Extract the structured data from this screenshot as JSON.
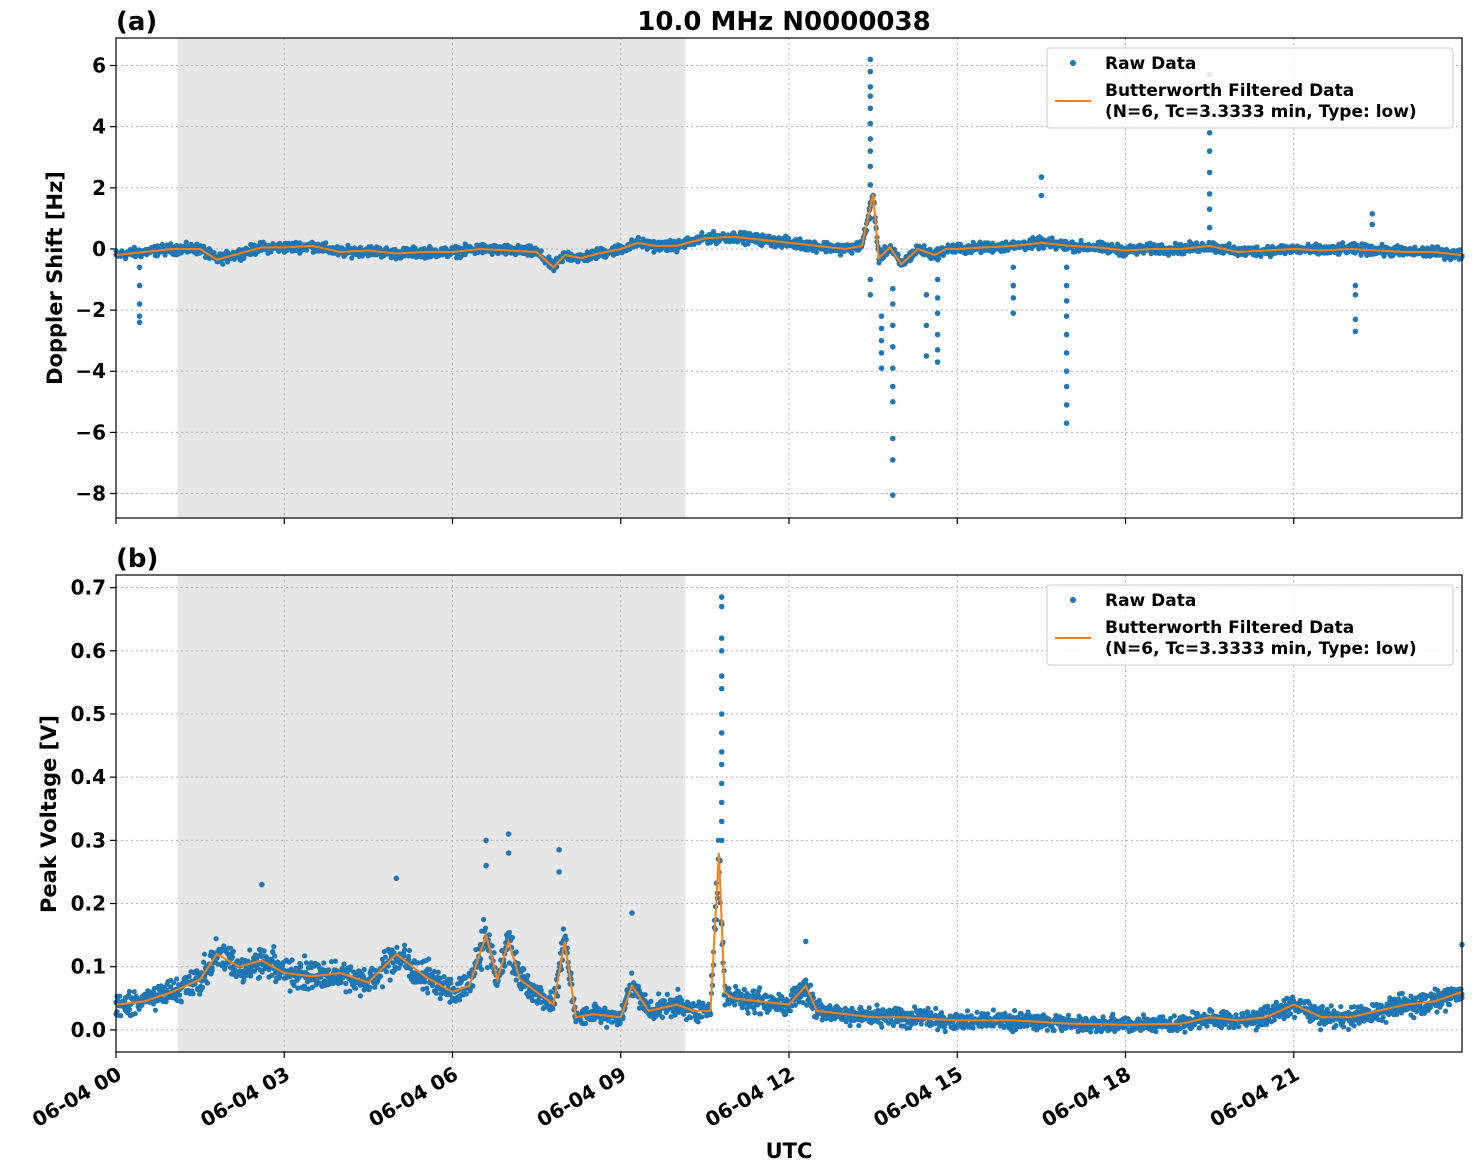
{
  "figure": {
    "title": "10.0 MHz N0000038",
    "xlabel": "UTC",
    "x_tick_labels": [
      "06-04 00",
      "06-04 03",
      "06-04 06",
      "06-04 09",
      "06-04 12",
      "06-04 15",
      "06-04 18",
      "06-04 21"
    ],
    "shaded_interval_hours": [
      1.1,
      10.15
    ],
    "colors": {
      "raw": "#1f77b4",
      "filtered": "#ff7f0e",
      "shade": "#e6e6e6",
      "grid": "#b0b0b0"
    }
  },
  "chart_data": [
    {
      "type": "scatter",
      "panel_label": "(a)",
      "ylabel": "Doppler Shift [Hz]",
      "xlim_hours": [
        0,
        24
      ],
      "ylim": [
        -8.8,
        6.9
      ],
      "y_ticks": [
        6,
        4,
        2,
        0,
        -2,
        -4,
        -6,
        -8
      ],
      "y_tick_labels": [
        "6",
        "4",
        "2",
        "0",
        "−2",
        "−4",
        "−6",
        "−8"
      ],
      "legend_position": "top-right",
      "legend": {
        "raw": "Raw Data",
        "filtered_line1": "Butterworth Filtered Data",
        "filtered_line2": "(N=6, Tc=3.3333 min, Type: low)"
      },
      "series": [
        {
          "name": "Butterworth Filtered Data",
          "x": [
            0,
            0.5,
            1,
            1.5,
            1.8,
            2.2,
            2.6,
            3,
            3.5,
            4,
            4.5,
            5,
            5.5,
            6,
            6.5,
            7,
            7.5,
            7.8,
            8,
            8.3,
            8.6,
            9,
            9.3,
            9.6,
            10,
            10.5,
            11,
            11.5,
            12,
            12.5,
            13,
            13.3,
            13.5,
            13.6,
            13.8,
            14,
            14.3,
            14.6,
            14.8,
            15,
            15.5,
            16,
            16.5,
            17,
            17.5,
            18,
            18.5,
            19,
            19.5,
            20,
            20.5,
            21,
            21.5,
            22,
            22.5,
            23,
            23.5,
            24
          ],
          "y": [
            -0.2,
            -0.1,
            0.0,
            0.0,
            -0.35,
            -0.15,
            0.05,
            0.05,
            0.1,
            -0.1,
            -0.05,
            -0.15,
            -0.1,
            -0.1,
            0.0,
            -0.05,
            -0.1,
            -0.6,
            -0.2,
            -0.3,
            -0.15,
            0.0,
            0.2,
            0.1,
            0.1,
            0.35,
            0.4,
            0.3,
            0.2,
            0.1,
            0.0,
            0.1,
            1.8,
            -0.3,
            0.05,
            -0.5,
            0.0,
            -0.2,
            0.0,
            0.0,
            0.05,
            0.1,
            0.2,
            0.1,
            0.05,
            -0.05,
            0.0,
            0.0,
            0.1,
            -0.1,
            -0.05,
            0.0,
            -0.05,
            0.0,
            -0.05,
            -0.1,
            -0.1,
            -0.2
          ]
        },
        {
          "name": "Raw Data",
          "band_spread": 0.25,
          "outliers": [
            {
              "x": 0.42,
              "y": [
                -0.6,
                -1.2,
                -1.8,
                -2.2,
                -2.4
              ]
            },
            {
              "x": 13.45,
              "y": [
                6.2,
                5.8,
                5.3,
                5.0,
                4.6,
                4.1,
                3.6,
                3.2,
                2.7,
                2.1,
                1.5,
                1.0,
                -1.0,
                -1.5
              ]
            },
            {
              "x": 13.65,
              "y": [
                -2.2,
                -2.6,
                -3.0,
                -3.4,
                -3.9
              ]
            },
            {
              "x": 13.85,
              "y": [
                -1.3,
                -1.8,
                -2.5,
                -3.2,
                -3.9,
                -4.5,
                -5.0,
                -6.2,
                -6.9,
                -8.05
              ]
            },
            {
              "x": 14.45,
              "y": [
                -1.5,
                -2.5,
                -3.5
              ]
            },
            {
              "x": 14.65,
              "y": [
                -1.0,
                -1.6,
                -2.1,
                -2.8,
                -3.3,
                -3.7
              ]
            },
            {
              "x": 16.0,
              "y": [
                -0.6,
                -1.2,
                -1.6,
                -2.1
              ]
            },
            {
              "x": 16.5,
              "y": [
                2.35,
                1.75
              ]
            },
            {
              "x": 16.95,
              "y": [
                -0.6,
                -1.2,
                -1.7,
                -2.2,
                -2.8,
                -3.4,
                -4.0,
                -4.5,
                -5.1,
                -5.7
              ]
            },
            {
              "x": 19.5,
              "y": [
                5.7,
                5.0,
                4.4,
                3.8,
                3.2,
                2.5,
                1.8,
                1.3,
                0.7
              ]
            },
            {
              "x": 22.1,
              "y": [
                -1.2,
                -1.5,
                -2.3,
                -2.7
              ]
            },
            {
              "x": 22.4,
              "y": [
                1.15,
                0.8
              ]
            }
          ]
        }
      ]
    },
    {
      "type": "scatter",
      "panel_label": "(b)",
      "ylabel": "Peak Voltage [V]",
      "xlim_hours": [
        0,
        24
      ],
      "ylim": [
        -0.035,
        0.72
      ],
      "y_ticks": [
        0.7,
        0.6,
        0.5,
        0.4,
        0.3,
        0.2,
        0.1,
        0.0
      ],
      "y_tick_labels": [
        "0.7",
        "0.6",
        "0.5",
        "0.4",
        "0.3",
        "0.2",
        "0.1",
        "0.0"
      ],
      "legend_position": "top-right",
      "legend": {
        "raw": "Raw Data",
        "filtered_line1": "Butterworth Filtered Data",
        "filtered_line2": "(N=6, Tc=3.3333 min, Type: low)"
      },
      "series": [
        {
          "name": "Butterworth Filtered Data",
          "x": [
            0,
            0.5,
            1,
            1.5,
            1.8,
            2.2,
            2.6,
            3,
            3.5,
            4,
            4.5,
            5,
            5.5,
            6,
            6.3,
            6.6,
            6.8,
            7.0,
            7.2,
            7.5,
            7.8,
            8.0,
            8.2,
            8.5,
            9.0,
            9.2,
            9.5,
            10.0,
            10.3,
            10.6,
            10.75,
            10.85,
            11.0,
            11.5,
            12.0,
            12.3,
            12.5,
            13.0,
            13.5,
            14,
            15,
            16,
            17,
            18,
            19,
            19.5,
            20,
            20.5,
            21,
            21.5,
            22,
            22.5,
            23,
            23.5,
            24
          ],
          "y": [
            0.04,
            0.045,
            0.06,
            0.08,
            0.12,
            0.1,
            0.11,
            0.09,
            0.085,
            0.09,
            0.075,
            0.12,
            0.085,
            0.06,
            0.07,
            0.15,
            0.08,
            0.14,
            0.08,
            0.06,
            0.04,
            0.14,
            0.02,
            0.025,
            0.02,
            0.07,
            0.03,
            0.04,
            0.03,
            0.03,
            0.28,
            0.06,
            0.05,
            0.045,
            0.04,
            0.07,
            0.03,
            0.025,
            0.02,
            0.02,
            0.015,
            0.015,
            0.01,
            0.008,
            0.01,
            0.02,
            0.015,
            0.02,
            0.04,
            0.02,
            0.02,
            0.03,
            0.04,
            0.045,
            0.06
          ]
        },
        {
          "name": "Raw Data",
          "band_spread": 0.035,
          "outliers": [
            {
              "x": 10.8,
              "y": [
                0.685,
                0.67,
                0.62,
                0.6,
                0.56,
                0.54,
                0.5,
                0.47,
                0.44,
                0.42,
                0.39,
                0.36,
                0.33,
                0.3
              ]
            },
            {
              "x": 6.6,
              "y": [
                0.3,
                0.26
              ]
            },
            {
              "x": 7.0,
              "y": [
                0.31,
                0.28
              ]
            },
            {
              "x": 7.9,
              "y": [
                0.285,
                0.25
              ]
            },
            {
              "x": 2.6,
              "y": [
                0.23
              ]
            },
            {
              "x": 5.0,
              "y": [
                0.24
              ]
            },
            {
              "x": 9.2,
              "y": [
                0.185
              ]
            },
            {
              "x": 12.3,
              "y": [
                0.14
              ]
            },
            {
              "x": 24.0,
              "y": [
                0.135
              ]
            }
          ]
        }
      ]
    }
  ]
}
